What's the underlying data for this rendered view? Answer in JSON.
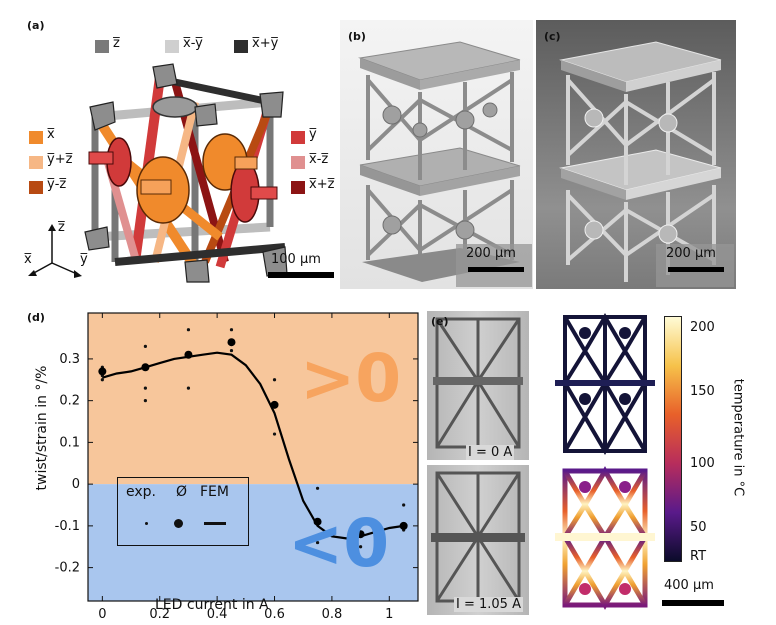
{
  "panels": {
    "a": {
      "label": "(a)",
      "legend_top": [
        {
          "text": "z̅",
          "color": "#7a7a7a"
        },
        {
          "text": "x̅-y̅",
          "color": "#cfcfcf"
        },
        {
          "text": "x̅+y̅",
          "color": "#2e2e2e"
        }
      ],
      "legend_left": [
        {
          "text": "x̅",
          "color": "#f08a2c"
        },
        {
          "text": "y̅+z̅",
          "color": "#f6b785"
        },
        {
          "text": "y̅-z̅",
          "color": "#b84a12"
        }
      ],
      "legend_right": [
        {
          "text": "y̅",
          "color": "#d13a3a"
        },
        {
          "text": "x̅-z̅",
          "color": "#e09090"
        },
        {
          "text": "x̅+z̅",
          "color": "#8c1414"
        }
      ],
      "axes": {
        "z": "z̅",
        "x": "x̅",
        "y": "y̅"
      },
      "scale_bar": "100 µm"
    },
    "b": {
      "label": "(b)",
      "scale_bar": "200 µm"
    },
    "c": {
      "label": "(c)",
      "scale_bar": "200 µm"
    },
    "e": {
      "label": "(e)",
      "top_caption": "I = 0 A",
      "bottom_caption": "I = 1.05 A",
      "colorbar_label": "temperature in °C",
      "colorbar_ticks": [
        "200",
        "150",
        "100",
        "50",
        "RT"
      ],
      "scale_bar": "400 µm"
    }
  },
  "chart_data": {
    "type": "line",
    "panel_label": "(d)",
    "xlabel": "LED current in A",
    "ylabel": "twist/strain in °/%",
    "xlim": [
      -0.05,
      1.1
    ],
    "ylim": [
      -0.28,
      0.41
    ],
    "x_ticks": [
      "0",
      "0.2",
      "0.4",
      "0.6",
      "0.8",
      "1"
    ],
    "y_ticks": [
      "0.3",
      "0.2",
      "0.1",
      "0",
      "-0.1",
      "-0.2"
    ],
    "region_positive": {
      "text": ">0",
      "color": "#f7c69b"
    },
    "region_negative": {
      "text": "<0",
      "color": "#a9c6ee"
    },
    "legend": {
      "exp": "exp.",
      "mean": "Ø",
      "fem": "FEM"
    },
    "experiment_points": [
      {
        "x": 0,
        "y": 0.26
      },
      {
        "x": 0,
        "y": 0.28
      },
      {
        "x": 0,
        "y": 0.25
      },
      {
        "x": 0.15,
        "y": 0.33
      },
      {
        "x": 0.15,
        "y": 0.23
      },
      {
        "x": 0.15,
        "y": 0.2
      },
      {
        "x": 0.3,
        "y": 0.37
      },
      {
        "x": 0.3,
        "y": 0.23
      },
      {
        "x": 0.45,
        "y": 0.37
      },
      {
        "x": 0.45,
        "y": 0.32
      },
      {
        "x": 0.6,
        "y": 0.25
      },
      {
        "x": 0.6,
        "y": 0.12
      },
      {
        "x": 0.75,
        "y": -0.01
      },
      {
        "x": 0.75,
        "y": -0.14
      },
      {
        "x": 0.9,
        "y": -0.09
      },
      {
        "x": 0.9,
        "y": -0.15
      },
      {
        "x": 1.05,
        "y": -0.05
      },
      {
        "x": 1.05,
        "y": -0.11
      }
    ],
    "mean_points": [
      {
        "x": 0,
        "y": 0.27
      },
      {
        "x": 0.15,
        "y": 0.28
      },
      {
        "x": 0.3,
        "y": 0.31
      },
      {
        "x": 0.45,
        "y": 0.34
      },
      {
        "x": 0.6,
        "y": 0.19
      },
      {
        "x": 0.75,
        "y": -0.09
      },
      {
        "x": 0.9,
        "y": -0.12
      },
      {
        "x": 1.05,
        "y": -0.1
      }
    ],
    "fem_curve": [
      {
        "x": 0,
        "y": 0.255
      },
      {
        "x": 0.05,
        "y": 0.265
      },
      {
        "x": 0.1,
        "y": 0.27
      },
      {
        "x": 0.15,
        "y": 0.28
      },
      {
        "x": 0.2,
        "y": 0.29
      },
      {
        "x": 0.25,
        "y": 0.3
      },
      {
        "x": 0.3,
        "y": 0.305
      },
      {
        "x": 0.35,
        "y": 0.31
      },
      {
        "x": 0.4,
        "y": 0.315
      },
      {
        "x": 0.45,
        "y": 0.31
      },
      {
        "x": 0.5,
        "y": 0.285
      },
      {
        "x": 0.55,
        "y": 0.24
      },
      {
        "x": 0.6,
        "y": 0.17
      },
      {
        "x": 0.65,
        "y": 0.06
      },
      {
        "x": 0.7,
        "y": -0.04
      },
      {
        "x": 0.75,
        "y": -0.1
      },
      {
        "x": 0.8,
        "y": -0.125
      },
      {
        "x": 0.85,
        "y": -0.13
      },
      {
        "x": 0.9,
        "y": -0.125
      },
      {
        "x": 0.95,
        "y": -0.115
      },
      {
        "x": 1.0,
        "y": -0.105
      },
      {
        "x": 1.05,
        "y": -0.1
      }
    ]
  }
}
